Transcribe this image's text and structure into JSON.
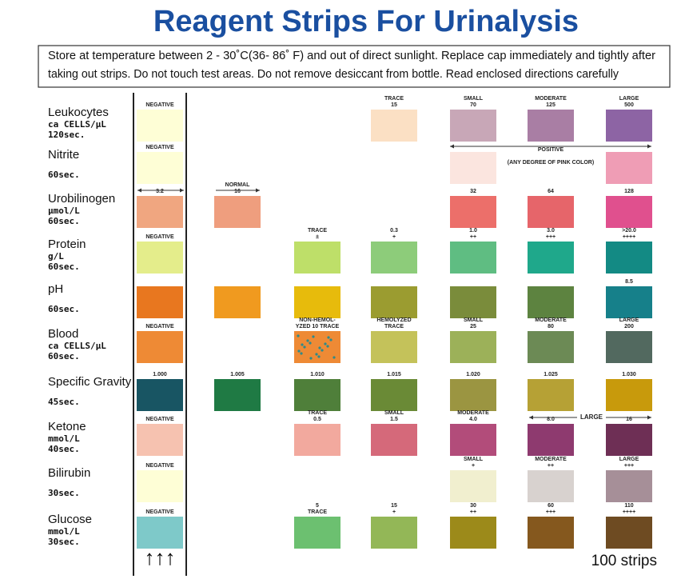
{
  "header": {
    "title": "Reagent Strips For Urinalysis",
    "note": [
      "Store  at temperature  between 2 - 30˚C(36- 86˚ F) and  out of direct sunlight.  Replace  cap immediately  and  tightly after",
      "taking out strips. Do not  touch test areas. Do not  remove desiccant  from bottle. Read  enclosed directions carefully"
    ]
  },
  "rows": [
    {
      "name": "Leukocytes",
      "unit": "ca CELLS/μL",
      "time": "120sec.",
      "cells": [
        {
          "labels": [
            "NEGATIVE"
          ],
          "color": "#fefed6"
        },
        null,
        null,
        {
          "labels": [
            "TRACE",
            "15"
          ],
          "color": "#fbe0c4"
        },
        {
          "labels": [
            "SMALL",
            "70"
          ],
          "color": "#c8a7b7"
        },
        {
          "labels": [
            "MODERATE",
            "125"
          ],
          "color": "#a97ea4"
        },
        {
          "labels": [
            "LARGE",
            "500"
          ],
          "color": "#8d64a4"
        }
      ]
    },
    {
      "name": "Nitrite",
      "time": "60sec.",
      "span": [
        "POSITIVE",
        "(ANY DEGREE OF PINK COLOR)"
      ],
      "cells": [
        {
          "labels": [
            "NEGATIVE"
          ],
          "color": "#fefed6"
        },
        null,
        null,
        null,
        {
          "color": "#fbe5df"
        },
        null,
        {
          "color": "#ef9db5"
        }
      ]
    },
    {
      "name": "Urobilinogen",
      "unit": "μmol/L",
      "time": "60sec.",
      "cells": [
        {
          "labels": [
            "3.2"
          ],
          "color": "#f0a680"
        },
        {
          "labels": [
            "NORMAL",
            "16"
          ],
          "color": "#ef9e7e"
        },
        null,
        null,
        {
          "labels": [
            "32"
          ],
          "color": "#ec6f6a"
        },
        {
          "labels": [
            "64"
          ],
          "color": "#e6656a"
        },
        {
          "labels": [
            "128"
          ],
          "color": "#e0508e"
        }
      ]
    },
    {
      "name": "Protein",
      "unit": "g/L",
      "time": "60sec.",
      "cells": [
        {
          "labels": [
            "NEGATIVE"
          ],
          "color": "#e4ed8b"
        },
        null,
        {
          "labels": [
            "TRACE",
            "±"
          ],
          "color": "#bedf69"
        },
        {
          "labels": [
            "0.3",
            "+"
          ],
          "color": "#8dcc7a"
        },
        {
          "labels": [
            "1.0",
            "++"
          ],
          "color": "#5fbd82"
        },
        {
          "labels": [
            "3.0",
            "+++"
          ],
          "color": "#1fa88b"
        },
        {
          "labels": [
            ">20.0",
            "++++"
          ],
          "color": "#138a84"
        }
      ]
    },
    {
      "name": "pH",
      "time": "60sec.",
      "cells": [
        {
          "color": "#e8771f"
        },
        {
          "color": "#f09a1f"
        },
        {
          "color": "#e7bb0c"
        },
        {
          "color": "#9b9c30"
        },
        {
          "color": "#7a8c3b"
        },
        {
          "color": "#5d8340"
        },
        {
          "labels": [
            "8.5"
          ],
          "color": "#16808a"
        }
      ]
    },
    {
      "name": "Blood",
      "unit": "ca CELLS/μL",
      "time": "60sec.",
      "cells": [
        {
          "labels": [
            "NEGATIVE"
          ],
          "color": "#ee8a35"
        },
        null,
        {
          "labels": [
            "NON-HEMOL-",
            "YZED 10 TRACE"
          ],
          "color": "#ee8a35",
          "spotted": true
        },
        {
          "labels": [
            "HEMOLYZED",
            "TRACE"
          ],
          "color": "#c4c25a"
        },
        {
          "labels": [
            "SMALL",
            "25"
          ],
          "color": "#9cb159"
        },
        {
          "labels": [
            "MODERATE",
            "80"
          ],
          "color": "#6c8a55"
        },
        {
          "labels": [
            "LARGE",
            "200"
          ],
          "color": "#52695f"
        }
      ]
    },
    {
      "name": "Specific Gravity",
      "time": "45sec.",
      "cells": [
        {
          "labels": [
            "1.000"
          ],
          "color": "#185563"
        },
        {
          "labels": [
            "1.005"
          ],
          "color": "#1f7a44"
        },
        {
          "labels": [
            "1.010"
          ],
          "color": "#4f7f3a"
        },
        {
          "labels": [
            "1.015"
          ],
          "color": "#6a8a36"
        },
        {
          "labels": [
            "1.020"
          ],
          "color": "#9b9541"
        },
        {
          "labels": [
            "1.025"
          ],
          "color": "#b6a135"
        },
        {
          "labels": [
            "1.030"
          ],
          "color": "#c89a0c"
        }
      ]
    },
    {
      "name": "Ketone",
      "unit": "mmol/L",
      "time": "40sec.",
      "span": [
        "LARGE"
      ],
      "cells": [
        {
          "labels": [
            "NEGATIVE"
          ],
          "color": "#f6c2b0"
        },
        null,
        {
          "labels": [
            "TRACE",
            "0.5"
          ],
          "color": "#f2a99e"
        },
        {
          "labels": [
            "SMALL",
            "1.5"
          ],
          "color": "#d5697a"
        },
        {
          "labels": [
            "MODERATE",
            "4.0"
          ],
          "color": "#b24c7a"
        },
        {
          "labels": [
            "8.0"
          ],
          "color": "#8e3a6f"
        },
        {
          "labels": [
            "16"
          ],
          "color": "#6e2f55"
        }
      ]
    },
    {
      "name": "Bilirubin",
      "time": "30sec.",
      "cells": [
        {
          "labels": [
            "NEGATIVE"
          ],
          "color": "#fefed6"
        },
        null,
        null,
        null,
        {
          "labels": [
            "SMALL",
            "+"
          ],
          "color": "#f1efcf"
        },
        {
          "labels": [
            "MODERATE",
            "++"
          ],
          "color": "#d8d2cf"
        },
        {
          "labels": [
            "LARGE",
            "+++"
          ],
          "color": "#a68f98"
        }
      ]
    },
    {
      "name": "Glucose",
      "unit": "mmol/L",
      "time": "30sec.",
      "cells": [
        {
          "labels": [
            "NEGATIVE"
          ],
          "color": "#7ec9c9"
        },
        null,
        {
          "labels": [
            "5",
            "TRACE"
          ],
          "color": "#6cc070"
        },
        {
          "labels": [
            "15",
            "+"
          ],
          "color": "#93b757"
        },
        {
          "labels": [
            "30",
            "++"
          ],
          "color": "#9c8a1a"
        },
        {
          "labels": [
            "60",
            "+++"
          ],
          "color": "#85581e"
        },
        {
          "labels": [
            "110",
            "++++"
          ],
          "color": "#6e4b22"
        }
      ]
    }
  ],
  "footer": {
    "arrows": "↑↑↑",
    "count": "100 strips"
  }
}
